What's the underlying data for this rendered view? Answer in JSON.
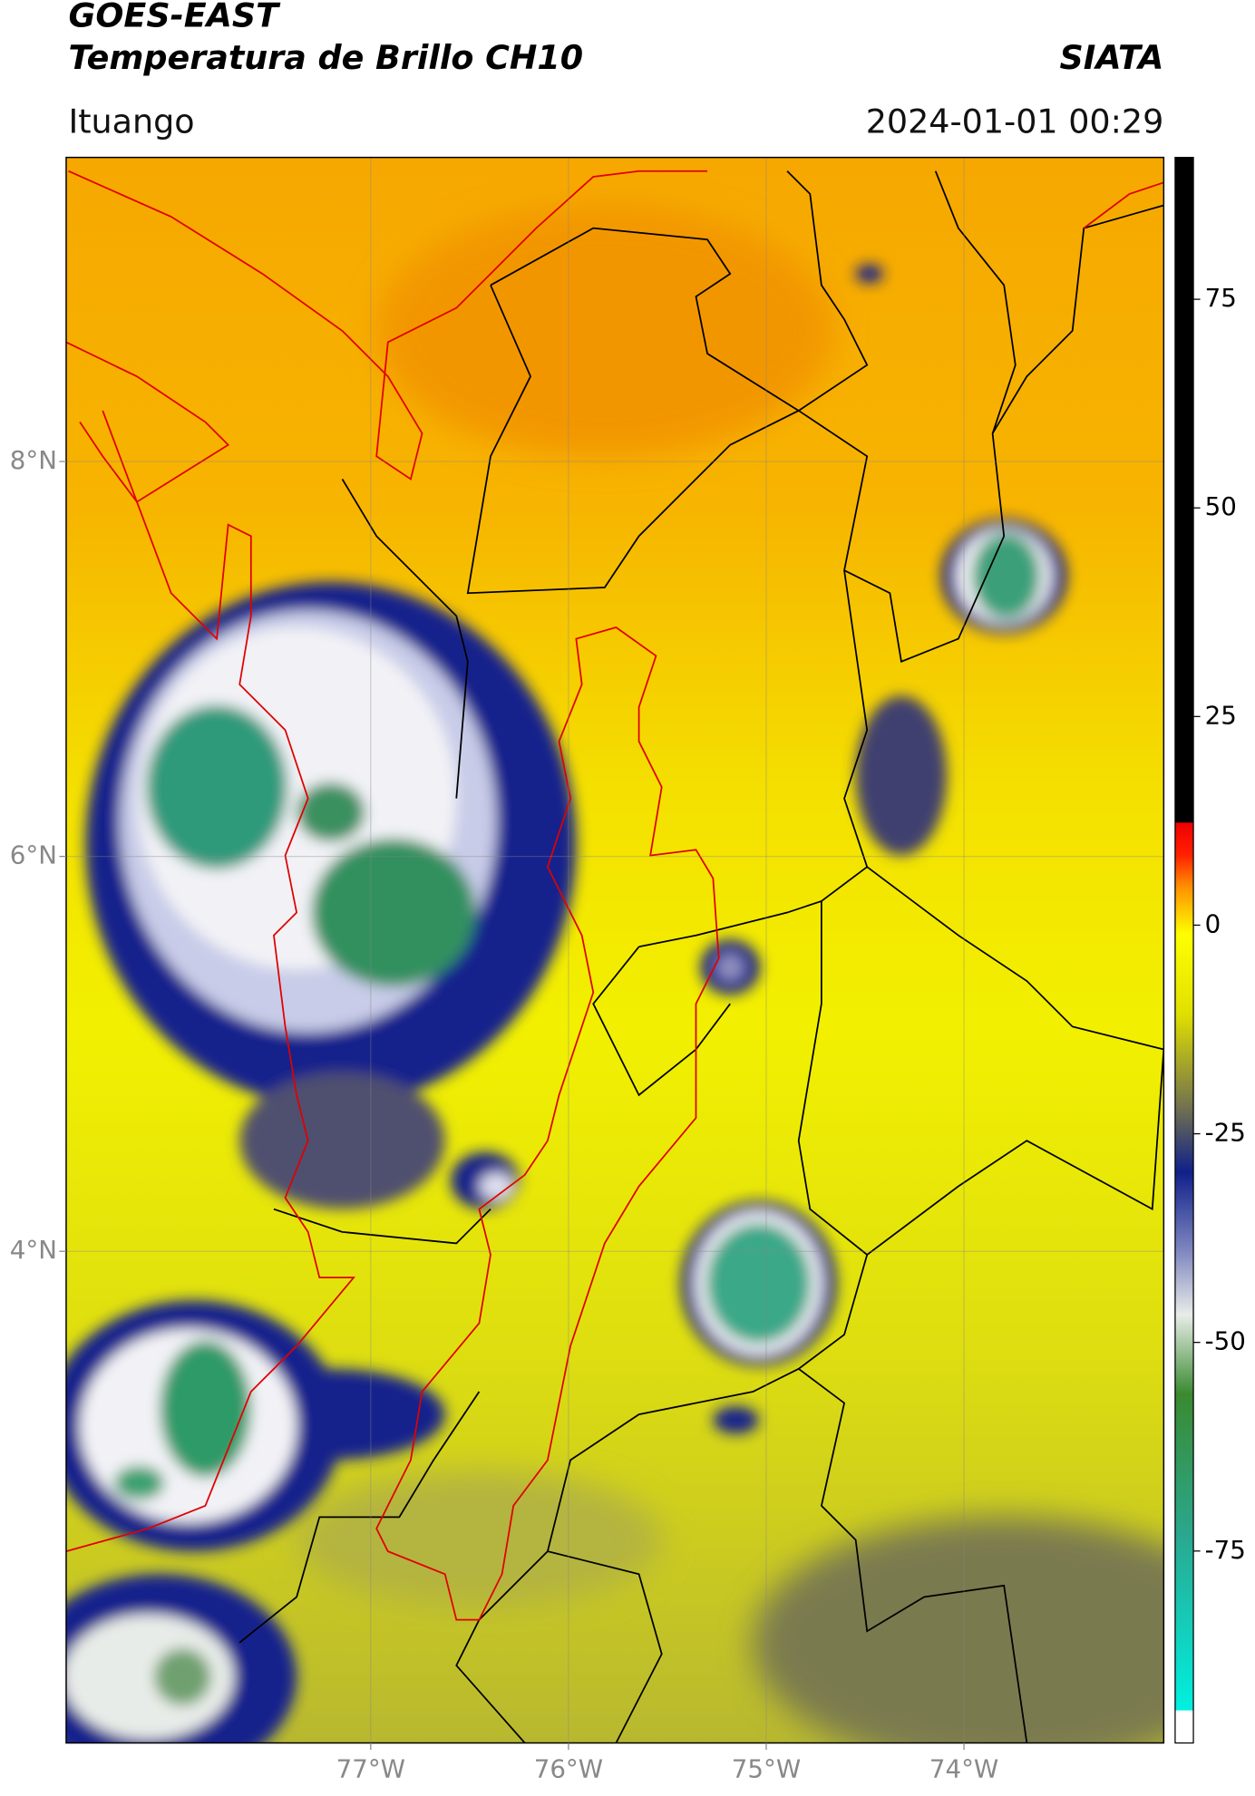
{
  "header": {
    "satellite": "GOES-EAST",
    "product": "Temperatura de Brillo CH10",
    "agency": "SIATA",
    "region": "Ituango",
    "timestamp": "2024-01-01 00:29"
  },
  "map": {
    "xlim": [
      -78.54,
      -72.99
    ],
    "ylim": [
      1.51,
      9.54
    ],
    "xticks": [
      {
        "value": -77,
        "label": "77°W"
      },
      {
        "value": -76,
        "label": "76°W"
      },
      {
        "value": -75,
        "label": "75°W"
      },
      {
        "value": -74,
        "label": "74°W"
      }
    ],
    "yticks": [
      {
        "value": 4,
        "label": "4°N"
      },
      {
        "value": 6,
        "label": "6°N"
      },
      {
        "value": 8,
        "label": "8°N"
      }
    ],
    "grid": true
  },
  "colorbar": {
    "lim": [
      -98,
      92
    ],
    "ticks": [
      -75,
      -50,
      -25,
      0,
      25,
      50,
      75
    ]
  }
}
